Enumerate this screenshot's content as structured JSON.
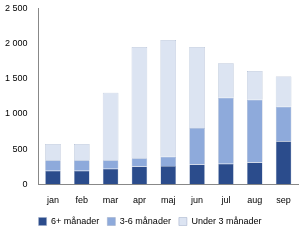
{
  "chart_data": {
    "type": "bar",
    "stacked": true,
    "grid": false,
    "legend": "bottom",
    "categories": [
      "jan",
      "feb",
      "mar",
      "apr",
      "maj",
      "jun",
      "jul",
      "aug",
      "sep"
    ],
    "series": [
      {
        "name": "6+ månader",
        "color": "#2b4c8c",
        "values": [
          190,
          190,
          220,
          250,
          260,
          280,
          290,
          310,
          610
        ]
      },
      {
        "name": "3-6 månader",
        "color": "#8eaadb",
        "values": [
          150,
          150,
          120,
          120,
          130,
          520,
          940,
          890,
          490
        ]
      },
      {
        "name": "Under 3 månader",
        "color": "#dce4f2",
        "values": [
          230,
          230,
          960,
          1580,
          1660,
          1150,
          490,
          410,
          430
        ]
      }
    ],
    "ylim": [
      0,
      2500
    ],
    "yticks": [
      0,
      500,
      {
        "value": 1000,
        "label": "1 000"
      },
      {
        "value": 1500,
        "label": "1 500"
      },
      {
        "value": 2000,
        "label": "2 000"
      },
      {
        "value": 2500,
        "label": "2 500"
      }
    ]
  }
}
